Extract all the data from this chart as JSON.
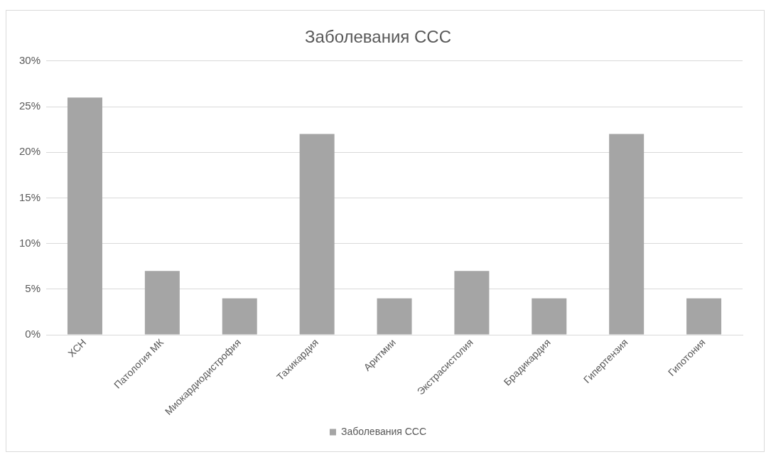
{
  "chart_data": {
    "type": "bar",
    "title": "Заболевания ССС",
    "categories": [
      "ХСН",
      "Патология МК",
      "Миокардиодистрофия",
      "Тахикардия",
      "Аритмии",
      "Экстрасистолия",
      "Брадикардия",
      "Гипертензия",
      "Гипотония"
    ],
    "series": [
      {
        "name": "Заболевания ССС",
        "color": "#a5a5a5",
        "values": [
          26,
          7,
          4,
          22,
          4,
          7,
          4,
          22,
          4
        ]
      }
    ],
    "ylim": [
      0,
      30
    ],
    "yticks": [
      {
        "value": 0,
        "label": "0%"
      },
      {
        "value": 5,
        "label": "5%"
      },
      {
        "value": 10,
        "label": "10%"
      },
      {
        "value": 15,
        "label": "15%"
      },
      {
        "value": 20,
        "label": "20%"
      },
      {
        "value": 25,
        "label": "25%"
      },
      {
        "value": 30,
        "label": "30%"
      }
    ],
    "grid": "y",
    "legend": "bottom"
  }
}
